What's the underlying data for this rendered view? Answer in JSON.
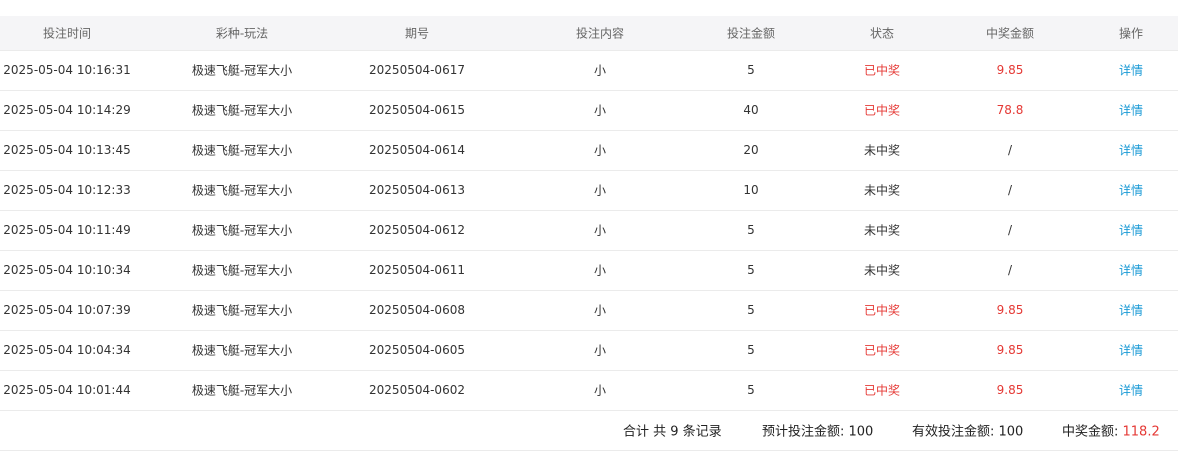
{
  "colors": {
    "win": "#e53935",
    "link": "#1a9ad6",
    "header_bg": "#f5f5f7"
  },
  "columns": [
    "投注时间",
    "彩种-玩法",
    "期号",
    "投注内容",
    "投注金额",
    "状态",
    "中奖金额",
    "操作"
  ],
  "rows": [
    {
      "time": "2025-05-04 10:16:31",
      "game": "极速飞艇-冠军大小",
      "issue": "20250504-0617",
      "content": "小",
      "amount": "5",
      "status": "已中奖",
      "win": "9.85",
      "action": "详情",
      "won": true
    },
    {
      "time": "2025-05-04 10:14:29",
      "game": "极速飞艇-冠军大小",
      "issue": "20250504-0615",
      "content": "小",
      "amount": "40",
      "status": "已中奖",
      "win": "78.8",
      "action": "详情",
      "won": true
    },
    {
      "time": "2025-05-04 10:13:45",
      "game": "极速飞艇-冠军大小",
      "issue": "20250504-0614",
      "content": "小",
      "amount": "20",
      "status": "未中奖",
      "win": "/",
      "action": "详情",
      "won": false
    },
    {
      "time": "2025-05-04 10:12:33",
      "game": "极速飞艇-冠军大小",
      "issue": "20250504-0613",
      "content": "小",
      "amount": "10",
      "status": "未中奖",
      "win": "/",
      "action": "详情",
      "won": false
    },
    {
      "time": "2025-05-04 10:11:49",
      "game": "极速飞艇-冠军大小",
      "issue": "20250504-0612",
      "content": "小",
      "amount": "5",
      "status": "未中奖",
      "win": "/",
      "action": "详情",
      "won": false
    },
    {
      "time": "2025-05-04 10:10:34",
      "game": "极速飞艇-冠军大小",
      "issue": "20250504-0611",
      "content": "小",
      "amount": "5",
      "status": "未中奖",
      "win": "/",
      "action": "详情",
      "won": false
    },
    {
      "time": "2025-05-04 10:07:39",
      "game": "极速飞艇-冠军大小",
      "issue": "20250504-0608",
      "content": "小",
      "amount": "5",
      "status": "已中奖",
      "win": "9.85",
      "action": "详情",
      "won": true
    },
    {
      "time": "2025-05-04 10:04:34",
      "game": "极速飞艇-冠军大小",
      "issue": "20250504-0605",
      "content": "小",
      "amount": "5",
      "status": "已中奖",
      "win": "9.85",
      "action": "详情",
      "won": true
    },
    {
      "time": "2025-05-04 10:01:44",
      "game": "极速飞艇-冠军大小",
      "issue": "20250504-0602",
      "content": "小",
      "amount": "5",
      "status": "已中奖",
      "win": "9.85",
      "action": "详情",
      "won": true
    }
  ],
  "footer": {
    "count": "合计 共 9 条记录",
    "expected_label": "预计投注金额: 100",
    "valid_label": "有效投注金额: 100",
    "win_label": "中奖金额: ",
    "win_value": "118.2"
  }
}
